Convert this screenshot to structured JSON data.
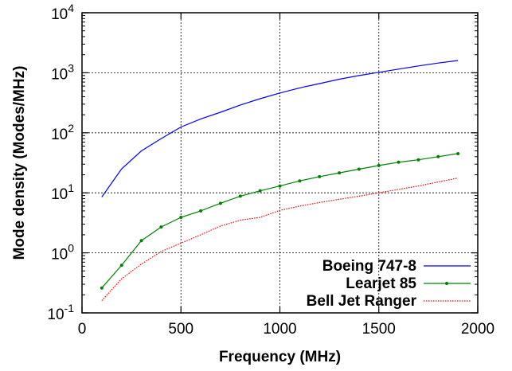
{
  "chart_data": {
    "type": "line",
    "title": "",
    "xlabel": "Frequency (MHz)",
    "ylabel": "Mode density (Modes/MHz)",
    "xlim": [
      0,
      2000
    ],
    "ylim": [
      0.1,
      10000
    ],
    "yscale": "log",
    "grid": true,
    "legend_position": "bottom-right",
    "x_ticks": [
      {
        "value": 0,
        "label": "0"
      },
      {
        "value": 500,
        "label": "500"
      },
      {
        "value": 1000,
        "label": "1000"
      },
      {
        "value": 1500,
        "label": "1500"
      },
      {
        "value": 2000,
        "label": "2000"
      }
    ],
    "y_ticks": [
      {
        "value": 0.1,
        "base": "10",
        "exp": "-1"
      },
      {
        "value": 1,
        "base": "10",
        "exp": "0"
      },
      {
        "value": 10,
        "base": "10",
        "exp": "1"
      },
      {
        "value": 100,
        "base": "10",
        "exp": "2"
      },
      {
        "value": 1000,
        "base": "10",
        "exp": "3"
      },
      {
        "value": 10000,
        "base": "10",
        "exp": "4"
      }
    ],
    "series": [
      {
        "name": "Boeing 747-8",
        "color": "#0000ff",
        "marker": "none",
        "dashed": false,
        "x": [
          100,
          200,
          300,
          400,
          500,
          600,
          700,
          800,
          900,
          1000,
          1100,
          1200,
          1300,
          1400,
          1500,
          1600,
          1700,
          1800,
          1900
        ],
        "y": [
          8.5,
          25,
          50,
          80,
          125,
          170,
          220,
          290,
          370,
          460,
          560,
          660,
          780,
          900,
          1020,
          1150,
          1300,
          1450,
          1600
        ]
      },
      {
        "name": "Learjet 85",
        "color": "#008000",
        "marker": "dot",
        "dashed": false,
        "x": [
          100,
          200,
          300,
          400,
          500,
          600,
          700,
          800,
          900,
          1000,
          1100,
          1200,
          1300,
          1400,
          1500,
          1600,
          1700,
          1800,
          1900
        ],
        "y": [
          0.26,
          0.62,
          1.6,
          2.7,
          3.9,
          5.0,
          6.7,
          8.8,
          10.8,
          13.0,
          15.8,
          18.6,
          21.5,
          24.8,
          28.5,
          32.3,
          35.5,
          40.0,
          45.0
        ]
      },
      {
        "name": "Bell Jet Ranger",
        "color": "#ff0000",
        "marker": "none",
        "dashed": true,
        "x": [
          100,
          200,
          300,
          400,
          500,
          600,
          700,
          800,
          900,
          1000,
          1100,
          1200,
          1300,
          1400,
          1500,
          1600,
          1700,
          1800,
          1900
        ],
        "y": [
          0.16,
          0.37,
          0.65,
          1.05,
          1.45,
          2.0,
          2.8,
          3.5,
          3.9,
          5.1,
          6.0,
          6.9,
          7.8,
          8.8,
          10.0,
          11.4,
          13.0,
          15.2,
          17.6
        ]
      }
    ]
  }
}
